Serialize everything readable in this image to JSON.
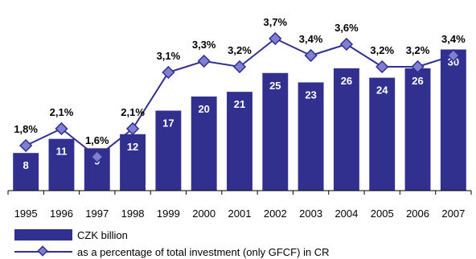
{
  "chart_data": {
    "type": "bar",
    "categories": [
      "1995",
      "1996",
      "1997",
      "1998",
      "1999",
      "2000",
      "2001",
      "2002",
      "2003",
      "2004",
      "2005",
      "2006",
      "2007"
    ],
    "series": [
      {
        "name": "CZK billion",
        "type": "bar",
        "values": [
          8,
          11,
          9,
          12,
          17,
          20,
          21,
          25,
          23,
          26,
          24,
          26,
          30
        ],
        "labels": [
          "8",
          "11",
          "9",
          "12",
          "17",
          "20",
          "21",
          "25",
          "23",
          "26",
          "24",
          "26",
          "30"
        ],
        "color": "#31308f"
      },
      {
        "name": "as a percentage of total investment (only GFCF) in CR",
        "type": "line",
        "values": [
          1.8,
          2.1,
          1.6,
          2.1,
          3.1,
          3.3,
          3.2,
          3.7,
          3.4,
          3.6,
          3.2,
          3.2,
          3.4
        ],
        "labels": [
          "1,8%",
          "2,1%",
          "1,6%",
          "2,1%",
          "3,1%",
          "3,3%",
          "3,2%",
          "3,7%",
          "3,4%",
          "3,6%",
          "3,2%",
          "3,2%",
          "3,4%"
        ],
        "color": "#31308f",
        "marker_color": "#8080d0"
      }
    ],
    "title": "",
    "xlabel": "",
    "ylabel": "",
    "legend_position": "bottom-left",
    "grid": false
  }
}
